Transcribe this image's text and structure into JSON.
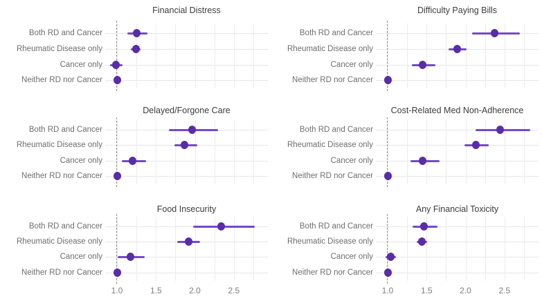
{
  "figure": {
    "background": "#ffffff",
    "point_color": "#5a2ca8",
    "segment_color": "#7348ce",
    "reference_line_color": "#8f8f8f",
    "grid_h_color": "#e6e6e6",
    "grid_v_color": "#ececec",
    "title_color": "#3c3c3c",
    "label_color": "#6e6e6e",
    "tick_color": "#7e7e7e"
  },
  "chart_data": {
    "type": "scatter",
    "subtype": "forest-plot-point-estimates-with-ci",
    "layout": "2 columns x 3 rows of panels, shared x axis, dashed reference line at 1.0, grid on at 0.25 steps",
    "categories": [
      "Both RD and Cancer",
      "Rheumatic Disease only",
      "Cancer only",
      "Neither RD nor Cancer"
    ],
    "x_tick_labels": [
      "1.0",
      "1.5",
      "2.0",
      "2.5"
    ],
    "x_tick_values": [
      1.0,
      1.5,
      2.0,
      2.5
    ],
    "xlim": [
      0.85,
      2.94
    ],
    "grid_step": 0.25,
    "reference_line_x": 1.0,
    "panels": [
      {
        "title": "Financial Distress",
        "estimates": [
          {
            "category": "Both RD and Cancer",
            "value": 1.25,
            "ci_low": 1.13,
            "ci_high": 1.39
          },
          {
            "category": "Rheumatic Disease only",
            "value": 1.24,
            "ci_low": 1.18,
            "ci_high": 1.3
          },
          {
            "category": "Cancer only",
            "value": 0.99,
            "ci_low": 0.91,
            "ci_high": 1.07
          },
          {
            "category": "Neither RD nor Cancer",
            "value": 1.0,
            "ci_low": 0.98,
            "ci_high": 1.02
          }
        ]
      },
      {
        "title": "Difficulty Paying Bills",
        "estimates": [
          {
            "category": "Both RD and Cancer",
            "value": 2.37,
            "ci_low": 2.08,
            "ci_high": 2.7
          },
          {
            "category": "Rheumatic Disease only",
            "value": 1.89,
            "ci_low": 1.78,
            "ci_high": 2.01
          },
          {
            "category": "Cancer only",
            "value": 1.45,
            "ci_low": 1.31,
            "ci_high": 1.61
          },
          {
            "category": "Neither RD nor Cancer",
            "value": 1.0,
            "ci_low": 0.99,
            "ci_high": 1.01
          }
        ]
      },
      {
        "title": "Delayed/Forgone Care",
        "estimates": [
          {
            "category": "Both RD and Cancer",
            "value": 1.96,
            "ci_low": 1.67,
            "ci_high": 2.3
          },
          {
            "category": "Rheumatic Disease only",
            "value": 1.87,
            "ci_low": 1.74,
            "ci_high": 2.03
          },
          {
            "category": "Cancer only",
            "value": 1.2,
            "ci_low": 1.06,
            "ci_high": 1.37
          },
          {
            "category": "Neither RD nor Cancer",
            "value": 1.0,
            "ci_low": 0.98,
            "ci_high": 1.02
          }
        ]
      },
      {
        "title": "Cost-Related Med Non-Adherence",
        "estimates": [
          {
            "category": "Both RD and Cancer",
            "value": 2.44,
            "ci_low": 2.13,
            "ci_high": 2.83
          },
          {
            "category": "Rheumatic Disease only",
            "value": 2.13,
            "ci_low": 1.99,
            "ci_high": 2.3
          },
          {
            "category": "Cancer only",
            "value": 1.45,
            "ci_low": 1.29,
            "ci_high": 1.67
          },
          {
            "category": "Neither RD nor Cancer",
            "value": 1.0,
            "ci_low": 0.99,
            "ci_high": 1.01
          }
        ]
      },
      {
        "title": "Food Insecurity",
        "estimates": [
          {
            "category": "Both RD and Cancer",
            "value": 2.34,
            "ci_low": 1.98,
            "ci_high": 2.77
          },
          {
            "category": "Rheumatic Disease only",
            "value": 1.92,
            "ci_low": 1.77,
            "ci_high": 2.07
          },
          {
            "category": "Cancer only",
            "value": 1.17,
            "ci_low": 1.01,
            "ci_high": 1.36
          },
          {
            "category": "Neither RD nor Cancer",
            "value": 1.0,
            "ci_low": 0.98,
            "ci_high": 1.02
          }
        ]
      },
      {
        "title": "Any Financial Toxicity",
        "estimates": [
          {
            "category": "Both RD and Cancer",
            "value": 1.47,
            "ci_low": 1.32,
            "ci_high": 1.64
          },
          {
            "category": "Rheumatic Disease only",
            "value": 1.44,
            "ci_low": 1.37,
            "ci_high": 1.51
          },
          {
            "category": "Cancer only",
            "value": 1.04,
            "ci_low": 0.97,
            "ci_high": 1.11
          },
          {
            "category": "Neither RD nor Cancer",
            "value": 1.0,
            "ci_low": 0.99,
            "ci_high": 1.01
          }
        ]
      }
    ]
  }
}
